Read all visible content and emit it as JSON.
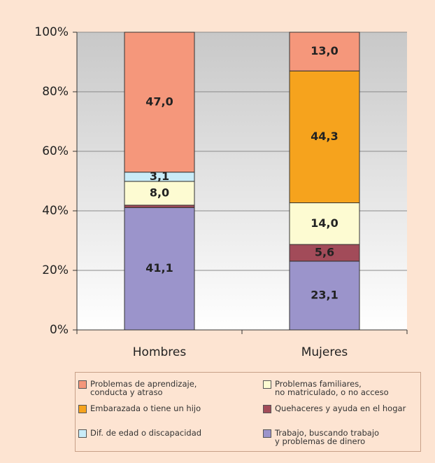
{
  "chart_data": {
    "type": "stacked_bar",
    "categories": [
      "Hombres",
      "Mujeres"
    ],
    "ylim": [
      0,
      100
    ],
    "yticks": [
      {
        "value": 0,
        "label": "0%"
      },
      {
        "value": 20,
        "label": "20%"
      },
      {
        "value": 40,
        "label": "40%"
      },
      {
        "value": 60,
        "label": "60%"
      },
      {
        "value": 80,
        "label": "80%"
      },
      {
        "value": 100,
        "label": "100%"
      }
    ],
    "grid": true,
    "series": [
      {
        "name": "Trabajo, buscando trabajo\ny problemas de dinero",
        "color": "#9b94cb",
        "values": [
          41.1,
          23.1
        ],
        "value_labels": [
          "41,1",
          "23,1"
        ]
      },
      {
        "name": "Quehaceres y ayuda en el hogar",
        "color": "#a24b59",
        "values": [
          0.8,
          5.6
        ],
        "value_labels": [
          null,
          "5,6"
        ]
      },
      {
        "name": "Problemas familiares,\nno matriculado, o no acceso",
        "color": "#fdfbd2",
        "values": [
          8.0,
          14.0
        ],
        "value_labels": [
          "8,0",
          "14,0"
        ]
      },
      {
        "name": "Dif. de edad o discapacidad",
        "color": "#c9ecf8",
        "values": [
          3.1,
          0
        ],
        "value_labels": [
          "3,1",
          null
        ]
      },
      {
        "name": "Embarazada o tiene un hijo",
        "color": "#f6a31d",
        "values": [
          0,
          44.3
        ],
        "value_labels": [
          null,
          "44,3"
        ]
      },
      {
        "name": "Problemas de aprendizaje,\nconducta y atraso",
        "color": "#f5977b",
        "values": [
          47.0,
          13.0
        ],
        "value_labels": [
          "47,0",
          "13,0"
        ]
      }
    ]
  }
}
